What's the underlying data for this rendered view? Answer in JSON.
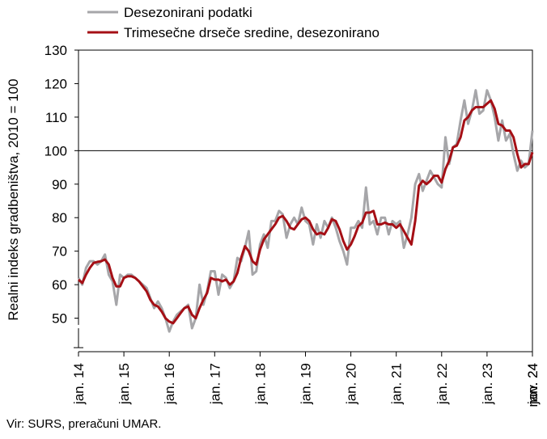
{
  "source_note": "Vir: SURS, preračuni UMAR.",
  "chart_data": {
    "type": "line",
    "title": "",
    "xlabel": "",
    "ylabel": "Realni indeks gradbeništva, 2010 = 100",
    "ylim": [
      40,
      130
    ],
    "yticks": [
      50,
      60,
      70,
      80,
      90,
      100,
      110,
      120,
      130
    ],
    "axis_break": true,
    "reference_line": 100,
    "legend_position": "top-left",
    "grid": false,
    "xtick_labels": [
      "jan. 14",
      "jan. 15",
      "jan. 16",
      "jan. 17",
      "jan. 18",
      "jan. 19",
      "jan. 20",
      "jan. 21",
      "jan. 22",
      "jan. 23",
      "jan. 24",
      "nov. 24"
    ],
    "x_start": "jan. 14",
    "x_end": "nov. 24",
    "colors": {
      "Desezonirani podatki": "#a6a6a9",
      "Trimesečne drseče sredine, desezonirano": "#a50f15"
    },
    "series": [
      {
        "name": "Desezonirani podatki",
        "values": [
          62,
          60,
          65,
          67,
          67,
          66,
          67,
          69,
          63,
          61,
          54,
          63,
          62,
          63,
          63,
          62,
          61,
          60,
          59,
          56,
          53,
          55,
          53,
          50,
          46,
          49,
          51,
          52,
          53,
          54,
          47,
          50,
          60,
          54,
          58,
          64,
          64,
          57,
          63,
          62,
          59,
          61,
          68,
          67,
          71,
          76,
          63,
          64,
          72,
          75,
          71,
          79,
          79,
          82,
          81,
          74,
          78,
          80,
          78,
          83,
          79,
          78,
          72,
          78,
          74,
          79,
          77,
          80,
          77,
          73,
          70,
          66,
          77,
          77,
          79,
          77,
          89,
          78,
          79,
          75,
          80,
          80,
          75,
          79,
          78,
          79,
          71,
          75,
          80,
          90,
          93,
          88,
          91,
          94,
          92,
          90,
          89,
          104,
          96,
          101,
          102,
          109,
          115,
          108,
          112,
          118,
          111,
          112,
          118,
          115,
          110,
          103,
          109,
          103,
          105,
          99,
          94,
          97,
          95,
          96,
          106
        ]
      },
      {
        "name": "Trimesečne drseče sredine, desezonirano",
        "values": [
          61.5,
          60.5,
          63,
          65,
          66.5,
          66.8,
          67,
          67.5,
          66,
          62,
          59.5,
          59.5,
          62,
          62.5,
          62.5,
          62,
          61,
          59.5,
          58,
          55.5,
          54,
          53.5,
          52,
          50,
          49,
          48.5,
          50,
          51.5,
          53,
          53.5,
          51,
          50,
          53,
          55.5,
          57.5,
          62,
          61.5,
          61.5,
          61,
          61.5,
          60,
          61,
          63.5,
          68,
          71.5,
          70,
          67,
          66,
          70.5,
          73.5,
          75,
          76.5,
          78,
          80,
          80.5,
          79,
          77,
          76.5,
          78,
          79.5,
          80,
          79,
          76.5,
          75,
          75.5,
          75,
          77,
          79.5,
          79,
          76.5,
          73,
          70.5,
          72,
          74.5,
          77.5,
          78.5,
          81.5,
          81.5,
          82,
          78,
          78,
          78.5,
          78,
          78,
          77,
          78,
          76,
          74,
          72,
          79,
          89.5,
          91,
          90,
          91,
          92.5,
          92.5,
          90.5,
          94.5,
          97,
          101,
          101.5,
          104,
          109,
          110,
          112,
          113,
          113,
          113,
          114,
          115,
          112.5,
          108,
          107.5,
          106,
          106,
          104,
          99,
          95,
          96,
          96,
          99.5
        ]
      }
    ]
  }
}
